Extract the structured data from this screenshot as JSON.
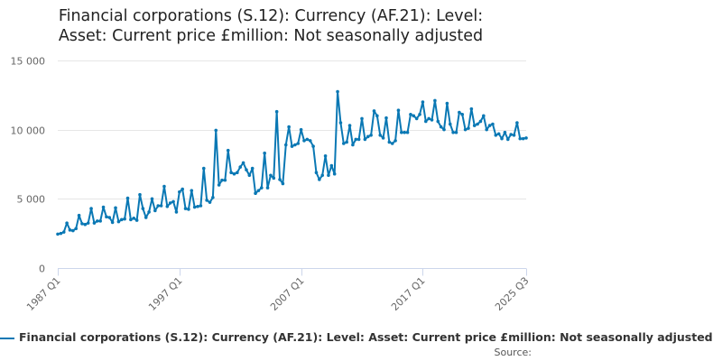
{
  "chart_data": {
    "type": "line",
    "title_line1": "Financial corporations (S.12): Currency (AF.21): Level:",
    "title_line2": "Asset: Current price £million: Not seasonally adjusted",
    "xlabel": "",
    "ylabel": "",
    "ylim": [
      0,
      15000
    ],
    "y_ticks": [
      0,
      5000,
      10000,
      15000
    ],
    "y_tick_labels": [
      "0",
      "5 000",
      "10 000",
      "15 000"
    ],
    "x_range": [
      1987.0,
      2025.5
    ],
    "x_ticks": [
      1987.0,
      1997.0,
      2007.0,
      2017.0,
      2025.5
    ],
    "x_tick_labels": [
      "1987 Q1",
      "1997 Q1",
      "2007 Q1",
      "2017 Q1",
      "2025 Q3"
    ],
    "grid": true,
    "legend_position": "bottom",
    "series": [
      {
        "name": "Financial corporations (S.12): Currency (AF.21): Level: Asset: Current price £million: Not seasonally adjusted",
        "color": "#0a78b4",
        "values": [
          2450,
          2500,
          2600,
          3250,
          2750,
          2700,
          2850,
          3800,
          3200,
          3150,
          3250,
          4300,
          3250,
          3400,
          3400,
          4400,
          3700,
          3650,
          3300,
          4350,
          3350,
          3500,
          3550,
          5050,
          3500,
          3600,
          3450,
          5300,
          4300,
          3650,
          4050,
          5000,
          4150,
          4500,
          4500,
          5900,
          4450,
          4700,
          4800,
          4050,
          5500,
          5700,
          4300,
          4250,
          5600,
          4400,
          4450,
          4500,
          7200,
          4900,
          4750,
          5100,
          9950,
          6000,
          6350,
          6350,
          8500,
          6900,
          6800,
          6900,
          7300,
          7600,
          7100,
          6700,
          7200,
          5400,
          5600,
          5800,
          8300,
          5800,
          6700,
          6500,
          11300,
          6400,
          6100,
          8900,
          10200,
          8800,
          8900,
          9000,
          10000,
          9200,
          9300,
          9200,
          8800,
          6900,
          6400,
          6700,
          8100,
          6700,
          7400,
          6800,
          12750,
          10500,
          9000,
          9100,
          10300,
          8900,
          9300,
          9300,
          10800,
          9300,
          9500,
          9600,
          11350,
          11000,
          9600,
          9400,
          10850,
          9100,
          9000,
          9200,
          11400,
          9800,
          9800,
          9800,
          11100,
          11000,
          10800,
          11100,
          12000,
          10600,
          10800,
          10700,
          12100,
          10600,
          10200,
          10000,
          11900,
          10400,
          9800,
          9800,
          11250,
          11100,
          10000,
          10100,
          11500,
          10300,
          10400,
          10600,
          11000,
          10000,
          10300,
          10400,
          9600,
          9700,
          9350,
          9800,
          9300,
          9650,
          9600,
          10500,
          9350,
          9350,
          9400
        ]
      }
    ],
    "legend_label": "Financial corporations (S.12): Currency (AF.21): Level: Asset: Current price £million: Not seasonally adjusted",
    "source_label": "Source:"
  }
}
